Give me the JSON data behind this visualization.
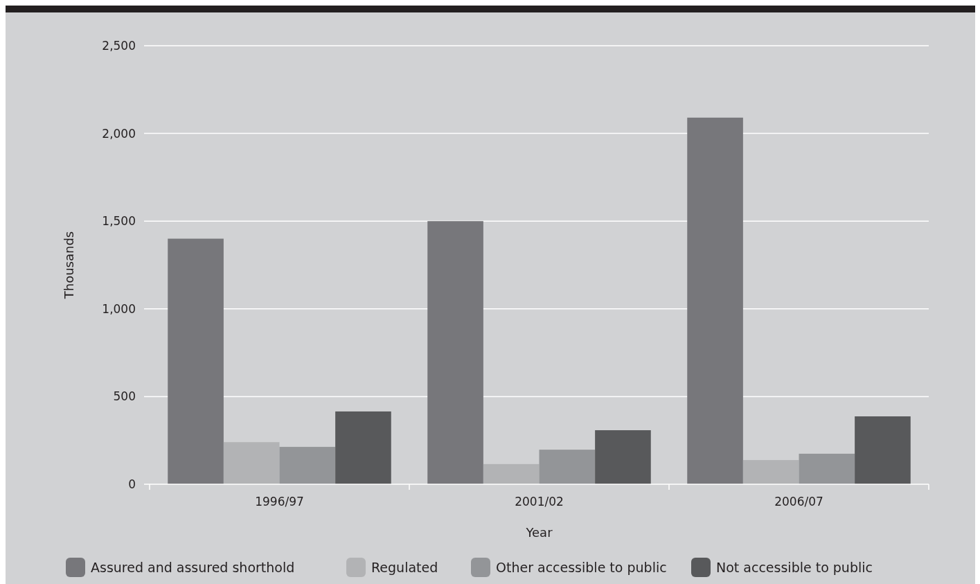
{
  "chart_data": {
    "type": "bar",
    "xlabel": "Year",
    "ylabel": "Thousands",
    "categories": [
      "1996/97",
      "2001/02",
      "2006/07"
    ],
    "series": [
      {
        "name": "Assured and assured shorthold",
        "color": "#77777b",
        "values": [
          1400,
          1500,
          2090
        ]
      },
      {
        "name": "Regulated",
        "color": "#b2b3b5",
        "values": [
          240,
          115,
          138
        ]
      },
      {
        "name": "Other accessible to public",
        "color": "#939598",
        "values": [
          213,
          197,
          174
        ]
      },
      {
        "name": "Not accessible to public",
        "color": "#58595b",
        "values": [
          415,
          308,
          387
        ]
      }
    ],
    "ylim": [
      0,
      2500
    ],
    "yticks": [
      {
        "value": 0,
        "label": "0"
      },
      {
        "value": 500,
        "label": "500"
      },
      {
        "value": 1000,
        "label": "1,000"
      },
      {
        "value": 1500,
        "label": "1,500"
      },
      {
        "value": 2000,
        "label": "2,000"
      },
      {
        "value": 2500,
        "label": "2,500"
      }
    ],
    "grid": "y",
    "legend": "bottom"
  }
}
